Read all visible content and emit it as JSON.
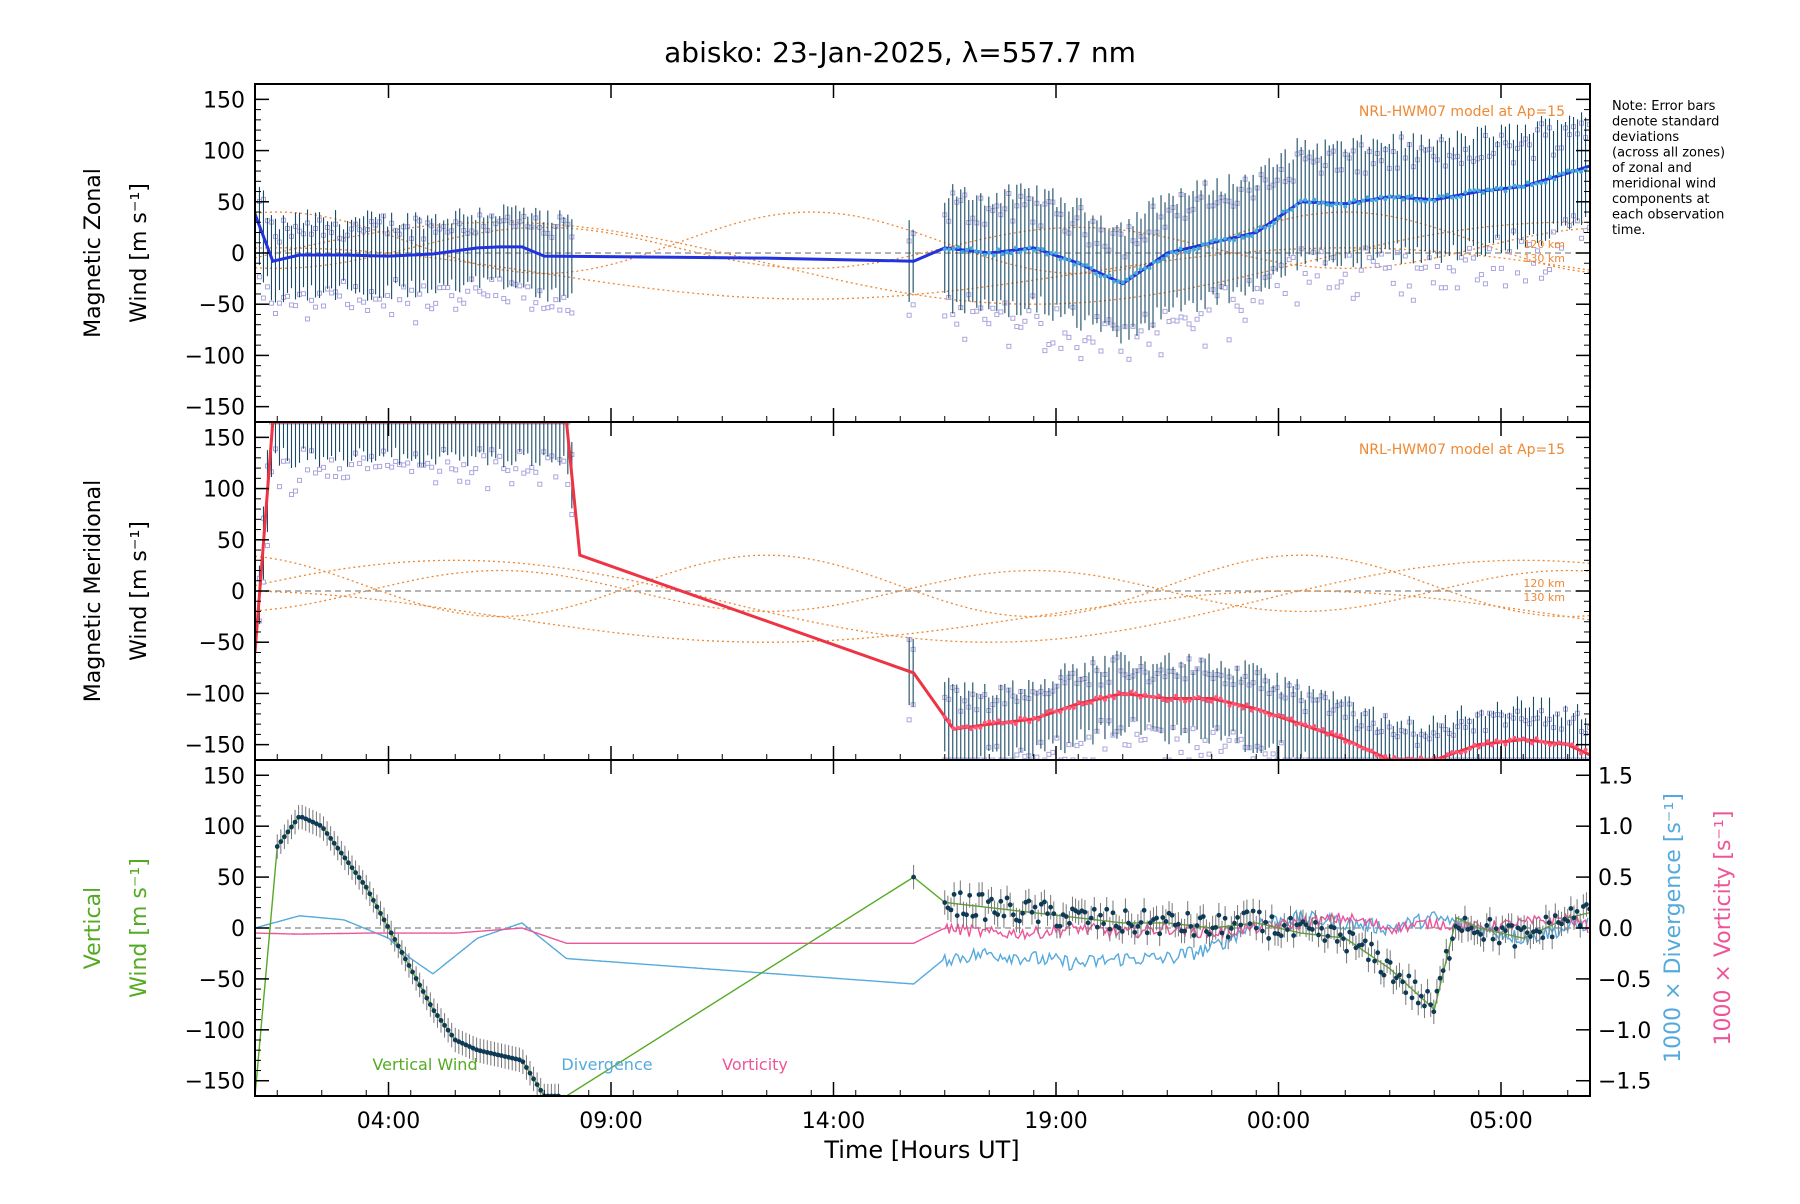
{
  "title": "abisko: 23-Jan-2025, λ=557.7 nm",
  "note_lines": [
    "Note: Error bars",
    "denote standard",
    "deviations",
    "(across all zones)",
    "of zonal and",
    "meridional wind",
    "components at",
    "each observation",
    "time."
  ],
  "x_axis": {
    "label": "Time [Hours UT]",
    "ticks": [
      "04:00",
      "09:00",
      "14:00",
      "19:00",
      "00:00",
      "05:00"
    ]
  },
  "colors": {
    "zonal_mean": "#2233dd",
    "zonal_points": "#44aadd",
    "meridional": "#ee3344",
    "meridional_points": "#ff5577",
    "model": "#ee8833",
    "scatter": "#aaa6dd",
    "errbar": "#1a4a66",
    "vertical": "#55aa22",
    "divergence": "#55aadd",
    "vorticity": "#ee5599",
    "zero_line": "#888888"
  },
  "panels": {
    "zonal": {
      "ylabel_line1": "Magnetic Zonal",
      "ylabel_line2": "Wind [m s⁻¹]",
      "model_label": "NRL-HWM07 model at Ap=15",
      "alt1": "120 km",
      "alt2": "130 km",
      "y_ticks": [
        "150",
        "100",
        "50",
        "0",
        "−50",
        "−100",
        "−150"
      ]
    },
    "meridional": {
      "ylabel_line1": "Magnetic Meridional",
      "ylabel_line2": "Wind [m s⁻¹]",
      "model_label": "NRL-HWM07 model at Ap=15",
      "alt1": "120 km",
      "alt2": "130 km",
      "y_ticks": [
        "150",
        "100",
        "50",
        "0",
        "−50",
        "−100",
        "−150"
      ]
    },
    "vertical": {
      "ylabel_line1": "Vertical",
      "ylabel_line2": "Wind [m s⁻¹]",
      "right_label1": "1000 × Divergence [s⁻¹]",
      "right_label2": "1000 × Vorticity [s⁻¹]",
      "y_ticks": [
        "150",
        "100",
        "50",
        "0",
        "−50",
        "−100",
        "−150"
      ],
      "y2_ticks": [
        "1.5",
        "1.0",
        "0.5",
        "0.0",
        "−0.5",
        "−1.0",
        "−1.5"
      ],
      "legend": [
        "Vertical Wind",
        "Divergence",
        "Vorticity"
      ]
    }
  },
  "chart_data": [
    {
      "type": "line",
      "title": "Magnetic Zonal Wind",
      "ylabel": "Magnetic Zonal Wind [m s⁻¹]",
      "xlabel": "Time [Hours UT]",
      "ylim": [
        -165,
        165
      ],
      "x_range_hours_ut": [
        0.5,
        30.5
      ],
      "series": [
        {
          "name": "",
          "x": [
            0.5,
            0.9,
            1.5,
            2.5,
            3.5,
            4.5,
            5.5,
            6.0,
            6.5,
            7.0,
            12.0,
            15.3,
            16.0,
            17.0,
            18.0,
            19.0,
            20.0,
            21.0,
            22.0,
            23.0,
            24.0,
            25.0,
            26.0,
            27.0,
            28.0,
            29.0,
            30.0,
            30.5
          ],
          "y": [
            38,
            -8,
            -2,
            -2,
            -3,
            -1,
            5,
            6,
            6,
            -3,
            -5,
            -8,
            5,
            0,
            5,
            -10,
            -30,
            0,
            10,
            20,
            50,
            48,
            55,
            52,
            60,
            65,
            78,
            85
          ]
        }
      ]
    },
    {
      "type": "line",
      "title": "Magnetic Meridional Wind",
      "ylabel": "Magnetic Meridional Wind [m s⁻¹]",
      "xlabel": "Time [Hours UT]",
      "ylim": [
        -165,
        165
      ],
      "x_range_hours_ut": [
        0.5,
        30.5
      ],
      "series": [
        {
          "name": "",
          "x": [
            0.5,
            0.9,
            1.4,
            7.5,
            7.8,
            15.3,
            16.2,
            17.0,
            18.0,
            19.0,
            20.0,
            21.0,
            22.0,
            23.0,
            24.0,
            25.0,
            26.0,
            27.0,
            28.0,
            29.0,
            30.0,
            30.5
          ],
          "y": [
            -60,
            165,
            165,
            165,
            35,
            -80,
            -135,
            -130,
            -125,
            -110,
            -100,
            -105,
            -105,
            -115,
            -130,
            -145,
            -165,
            -165,
            -150,
            -145,
            -150,
            -160
          ]
        }
      ]
    },
    {
      "type": "line",
      "title": "Vertical Wind / Divergence / Vorticity",
      "ylabel": "Vertical Wind [m s⁻¹]",
      "y2label": "1000 × Divergence / Vorticity [s⁻¹]",
      "xlabel": "Time [Hours UT]",
      "ylim": [
        -165,
        165
      ],
      "y2lim": [
        -1.5,
        1.5
      ],
      "x_range_hours_ut": [
        0.5,
        30.5
      ],
      "series": [
        {
          "name": "Vertical Wind",
          "x": [
            0.5,
            1.0,
            1.5,
            2.0,
            2.5,
            3.0,
            3.5,
            4.0,
            4.5,
            5.0,
            5.5,
            6.0,
            6.5,
            7.0,
            7.5,
            15.3,
            16.0,
            17.0,
            18.0,
            19.0,
            20.0,
            21.0,
            22.0,
            23.0,
            24.0,
            25.0,
            26.0,
            27.0,
            27.5,
            28.0,
            29.0,
            30.0,
            30.5
          ],
          "y": [
            -165,
            80,
            110,
            100,
            70,
            40,
            0,
            -40,
            -80,
            -110,
            -120,
            -125,
            -130,
            -165,
            -165,
            50,
            25,
            20,
            15,
            10,
            5,
            5,
            0,
            5,
            -5,
            -10,
            -40,
            -80,
            10,
            0,
            -10,
            10,
            15
          ]
        },
        {
          "name": "Divergence",
          "x": [
            0.5,
            1.5,
            2.5,
            3.5,
            4.0,
            4.5,
            5.5,
            6.5,
            7.5,
            15.3,
            16.0,
            17.0,
            18.0,
            19.0,
            20.0,
            21.0,
            22.0,
            23.0,
            24.0,
            25.0,
            26.0,
            27.0,
            28.0,
            29.0,
            30.0,
            30.5
          ],
          "y": [
            0.0,
            0.12,
            0.08,
            -0.1,
            -0.3,
            -0.45,
            -0.1,
            0.05,
            -0.3,
            -0.55,
            -0.3,
            -0.25,
            -0.3,
            -0.35,
            -0.3,
            -0.3,
            -0.2,
            0.05,
            0.1,
            0.05,
            0.0,
            0.1,
            0.0,
            -0.1,
            0.0,
            0.05
          ]
        },
        {
          "name": "Vorticity",
          "x": [
            0.5,
            1.5,
            3.0,
            5.0,
            6.5,
            7.5,
            15.3,
            16.0,
            17.0,
            18.0,
            19.0,
            20.0,
            21.0,
            22.0,
            23.0,
            24.0,
            25.0,
            26.0,
            27.0,
            28.0,
            29.0,
            30.0,
            30.5
          ],
          "y": [
            -0.05,
            -0.06,
            -0.05,
            -0.05,
            0.0,
            -0.15,
            -0.15,
            0.0,
            -0.05,
            -0.05,
            0.0,
            -0.05,
            0.0,
            -0.05,
            0.0,
            0.05,
            0.1,
            0.0,
            0.05,
            0.0,
            0.05,
            0.1,
            0.0
          ]
        }
      ]
    }
  ]
}
